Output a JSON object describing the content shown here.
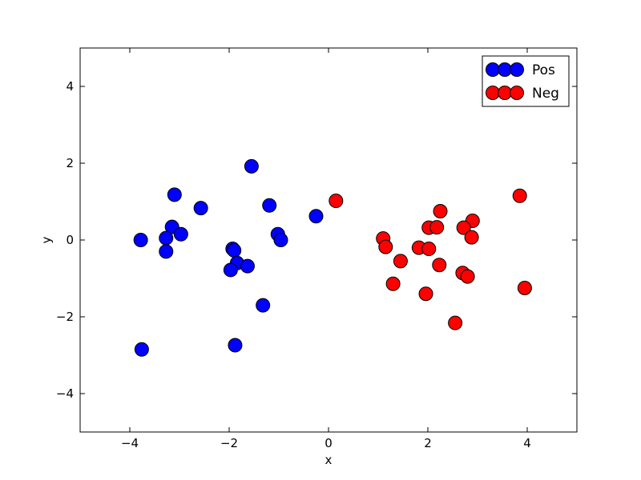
{
  "chart_data": {
    "type": "scatter",
    "title": "",
    "xlabel": "x",
    "ylabel": "y",
    "xlim": [
      -5,
      5
    ],
    "ylim": [
      -5,
      5
    ],
    "xticks": [
      -4,
      -2,
      0,
      2,
      4
    ],
    "yticks": [
      -4,
      -2,
      0,
      2,
      4
    ],
    "xtick_labels": [
      "−4",
      "−2",
      "0",
      "2",
      "4"
    ],
    "ytick_labels": [
      "−4",
      "−2",
      "0",
      "2",
      "4"
    ],
    "grid": false,
    "legend_position": "top-right",
    "series": [
      {
        "name": "Pos",
        "color": "#0000ff",
        "points": [
          [
            -1.55,
            1.92
          ],
          [
            -3.1,
            1.18
          ],
          [
            -2.57,
            0.83
          ],
          [
            -1.19,
            0.9
          ],
          [
            -0.25,
            0.62
          ],
          [
            -3.15,
            0.34
          ],
          [
            -2.97,
            0.15
          ],
          [
            -3.27,
            0.05
          ],
          [
            -3.78,
            0.0
          ],
          [
            -1.02,
            0.15
          ],
          [
            -0.96,
            0.0
          ],
          [
            -3.27,
            -0.3
          ],
          [
            -1.93,
            -0.23
          ],
          [
            -1.9,
            -0.27
          ],
          [
            -1.84,
            -0.6
          ],
          [
            -1.63,
            -0.68
          ],
          [
            -1.97,
            -0.78
          ],
          [
            -1.32,
            -1.7
          ],
          [
            -3.76,
            -2.85
          ],
          [
            -1.88,
            -2.74
          ]
        ]
      },
      {
        "name": "Neg",
        "color": "#ff0000",
        "points": [
          [
            0.15,
            1.02
          ],
          [
            3.85,
            1.15
          ],
          [
            2.25,
            0.75
          ],
          [
            2.9,
            0.5
          ],
          [
            2.02,
            0.32
          ],
          [
            2.18,
            0.33
          ],
          [
            2.72,
            0.32
          ],
          [
            2.88,
            0.07
          ],
          [
            1.1,
            0.04
          ],
          [
            1.15,
            -0.18
          ],
          [
            1.82,
            -0.2
          ],
          [
            2.02,
            -0.23
          ],
          [
            1.45,
            -0.55
          ],
          [
            2.23,
            -0.65
          ],
          [
            2.7,
            -0.86
          ],
          [
            2.8,
            -0.95
          ],
          [
            1.3,
            -1.14
          ],
          [
            1.96,
            -1.4
          ],
          [
            3.95,
            -1.25
          ],
          [
            2.55,
            -2.16
          ]
        ]
      }
    ]
  }
}
